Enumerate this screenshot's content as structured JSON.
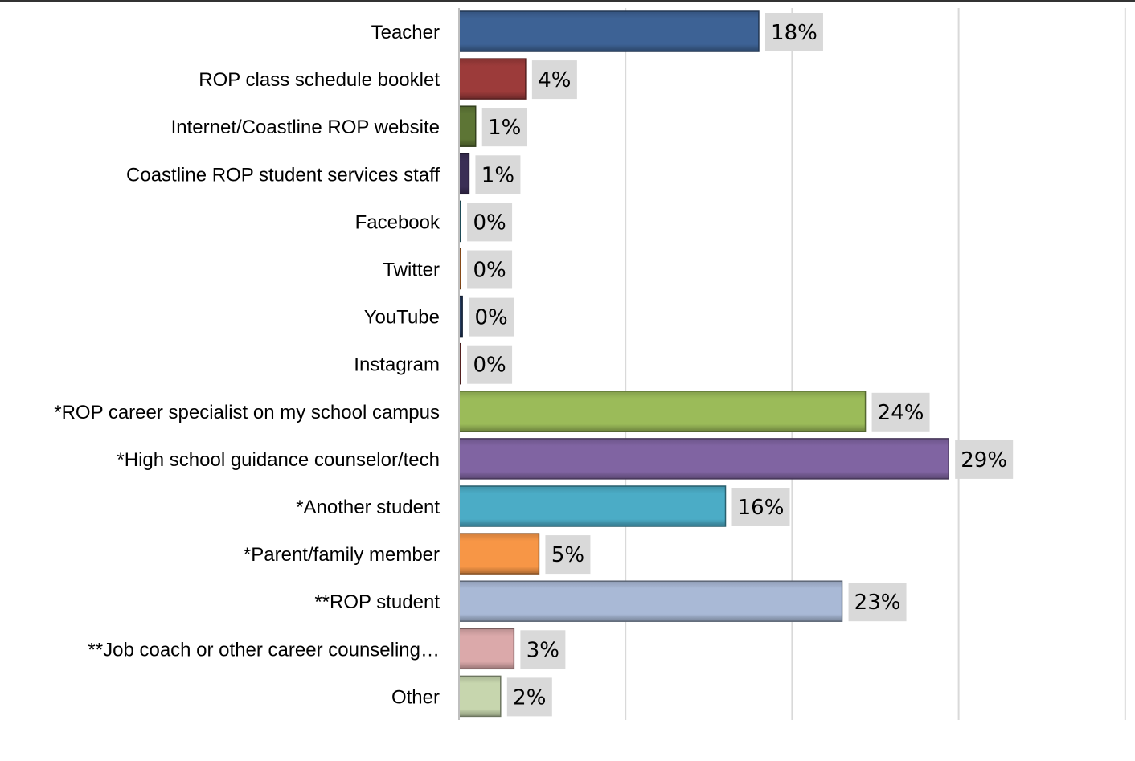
{
  "chart_data": {
    "type": "bar",
    "orientation": "horizontal",
    "title": "",
    "xlabel": "",
    "ylabel": "",
    "xlim": [
      0,
      40
    ],
    "grid": true,
    "legend": "none",
    "bars": [
      {
        "category": "Teacher",
        "value": 18,
        "label": "18%",
        "color": "#3d6295"
      },
      {
        "category": "ROP class schedule booklet",
        "value": 4,
        "label": "4%",
        "color": "#9c3b3a"
      },
      {
        "category": "Internet/Coastline ROP website",
        "value": 1,
        "label": "1%",
        "color": "#5d7535"
      },
      {
        "category": "Coastline ROP student services staff",
        "value": 0.6,
        "label": "1%",
        "color": "#3a2e55"
      },
      {
        "category": "Facebook",
        "value": 0.1,
        "label": "0%",
        "color": "#2b6e80"
      },
      {
        "category": "Twitter",
        "value": 0.1,
        "label": "0%",
        "color": "#c06a22"
      },
      {
        "category": "YouTube",
        "value": 0.2,
        "label": "0%",
        "color": "#243b5e"
      },
      {
        "category": "Instagram",
        "value": 0.1,
        "label": "0%",
        "color": "#7a2f2e"
      },
      {
        "category": "*ROP career specialist on my school campus",
        "value": 24.4,
        "label": "24%",
        "color": "#9bbb59"
      },
      {
        "category": "*High school guidance counselor/tech",
        "value": 29.4,
        "label": "29%",
        "color": "#8064a2"
      },
      {
        "category": "*Another student",
        "value": 16,
        "label": "16%",
        "color": "#4bacc6"
      },
      {
        "category": "*Parent/family member",
        "value": 4.8,
        "label": "5%",
        "color": "#f79646"
      },
      {
        "category": "**ROP student",
        "value": 23,
        "label": "23%",
        "color": "#a9b9d6"
      },
      {
        "category": "**Job coach or other career counseling…",
        "value": 3.3,
        "label": "3%",
        "color": "#dba9aa"
      },
      {
        "category": "Other",
        "value": 2.5,
        "label": "2%",
        "color": "#c7d6ae"
      }
    ],
    "gridlines": [
      0,
      10,
      20,
      30,
      40
    ]
  }
}
